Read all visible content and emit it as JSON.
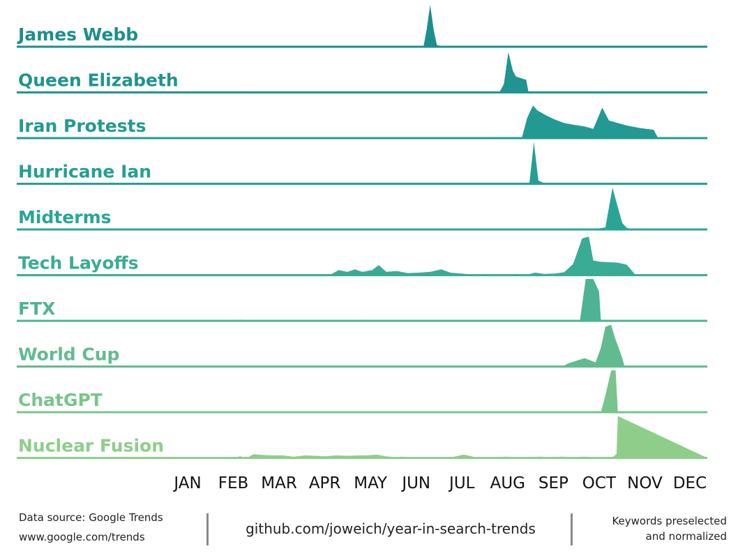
{
  "chart_data": {
    "type": "area",
    "subtype": "ridgeline",
    "months": [
      "JAN",
      "FEB",
      "MAR",
      "APR",
      "MAY",
      "JUN",
      "JUL",
      "AUG",
      "SEP",
      "OCT",
      "NOV",
      "DEC"
    ],
    "x_range": [
      0,
      12
    ],
    "y_range": [
      0,
      100
    ],
    "series": [
      {
        "name": "James Webb",
        "color": "#1b8e8e",
        "points": [
          [
            0,
            0
          ],
          [
            5.5,
            0
          ],
          [
            5.65,
            0
          ],
          [
            5.72,
            40
          ],
          [
            5.8,
            100
          ],
          [
            5.88,
            40
          ],
          [
            5.95,
            4
          ],
          [
            6.1,
            0
          ],
          [
            12,
            0
          ]
        ]
      },
      {
        "name": "Queen Elizabeth",
        "color": "#1f9490",
        "points": [
          [
            0,
            0
          ],
          [
            1.6,
            0
          ],
          [
            1.68,
            3
          ],
          [
            1.78,
            0
          ],
          [
            4.7,
            0
          ],
          [
            4.8,
            1
          ],
          [
            4.9,
            0
          ],
          [
            7.35,
            0
          ],
          [
            7.45,
            20
          ],
          [
            7.55,
            96
          ],
          [
            7.65,
            52
          ],
          [
            7.72,
            38
          ],
          [
            7.95,
            30
          ],
          [
            8.0,
            0
          ],
          [
            12,
            0
          ]
        ]
      },
      {
        "name": "Iran Protests",
        "color": "#229a93",
        "points": [
          [
            0,
            0
          ],
          [
            7.85,
            0
          ],
          [
            7.97,
            48
          ],
          [
            8.1,
            78
          ],
          [
            8.2,
            66
          ],
          [
            8.4,
            54
          ],
          [
            8.6,
            44
          ],
          [
            8.8,
            36
          ],
          [
            9.0,
            32
          ],
          [
            9.25,
            28
          ],
          [
            9.45,
            22
          ],
          [
            9.65,
            73
          ],
          [
            9.8,
            42
          ],
          [
            10.2,
            30
          ],
          [
            10.5,
            24
          ],
          [
            10.8,
            20
          ],
          [
            10.9,
            0
          ],
          [
            12,
            0
          ]
        ]
      },
      {
        "name": "Hurricane Ian",
        "color": "#259f94",
        "points": [
          [
            0,
            0
          ],
          [
            8.02,
            0
          ],
          [
            8.12,
            100
          ],
          [
            8.22,
            8
          ],
          [
            8.32,
            3
          ],
          [
            8.4,
            0
          ],
          [
            12,
            0
          ]
        ]
      },
      {
        "name": "Midterms",
        "color": "#2aa595",
        "points": [
          [
            0,
            0
          ],
          [
            9.4,
            0
          ],
          [
            9.6,
            3
          ],
          [
            9.72,
            5
          ],
          [
            9.8,
            52
          ],
          [
            9.88,
            100
          ],
          [
            9.98,
            60
          ],
          [
            10.1,
            15
          ],
          [
            10.2,
            4
          ],
          [
            10.3,
            0
          ],
          [
            12,
            0
          ]
        ]
      },
      {
        "name": "Tech Layoffs",
        "color": "#3aac96",
        "points": [
          [
            0,
            0
          ],
          [
            3.5,
            0
          ],
          [
            3.6,
            3
          ],
          [
            3.75,
            12
          ],
          [
            3.95,
            8
          ],
          [
            4.12,
            14
          ],
          [
            4.28,
            8
          ],
          [
            4.5,
            12
          ],
          [
            4.65,
            24
          ],
          [
            4.82,
            8
          ],
          [
            5.05,
            10
          ],
          [
            5.3,
            5
          ],
          [
            5.55,
            6
          ],
          [
            5.8,
            8
          ],
          [
            6.05,
            14
          ],
          [
            6.25,
            6
          ],
          [
            6.5,
            4
          ],
          [
            6.75,
            1
          ],
          [
            7.0,
            3
          ],
          [
            7.25,
            2
          ],
          [
            7.5,
            2
          ],
          [
            7.75,
            3
          ],
          [
            7.95,
            1
          ],
          [
            8.15,
            6
          ],
          [
            8.35,
            3
          ],
          [
            8.6,
            4
          ],
          [
            8.8,
            7
          ],
          [
            9.0,
            27
          ],
          [
            9.2,
            88
          ],
          [
            9.35,
            92
          ],
          [
            9.45,
            35
          ],
          [
            9.6,
            32
          ],
          [
            10.0,
            30
          ],
          [
            10.2,
            25
          ],
          [
            10.4,
            0
          ],
          [
            12,
            0
          ]
        ]
      },
      {
        "name": "FTX",
        "color": "#4db394",
        "points": [
          [
            0,
            0
          ],
          [
            1.3,
            0
          ],
          [
            1.55,
            3
          ],
          [
            1.85,
            0
          ],
          [
            4.15,
            0
          ],
          [
            4.3,
            3
          ],
          [
            4.45,
            0
          ],
          [
            9.15,
            0
          ],
          [
            9.28,
            100
          ],
          [
            9.45,
            100
          ],
          [
            9.58,
            70
          ],
          [
            9.62,
            0
          ],
          [
            9.75,
            0
          ],
          [
            9.83,
            0
          ],
          [
            9.93,
            0
          ],
          [
            12,
            0
          ]
        ]
      },
      {
        "name": "World Cup",
        "color": "#62bb90",
        "points": [
          [
            0,
            0
          ],
          [
            3.1,
            0
          ],
          [
            3.2,
            2
          ],
          [
            3.3,
            0
          ],
          [
            8.75,
            0
          ],
          [
            8.9,
            8
          ],
          [
            9.25,
            20
          ],
          [
            9.38,
            15
          ],
          [
            9.5,
            10
          ],
          [
            9.62,
            45
          ],
          [
            9.72,
            95
          ],
          [
            9.85,
            100
          ],
          [
            9.93,
            70
          ],
          [
            10.0,
            50
          ],
          [
            10.1,
            20
          ],
          [
            10.15,
            0
          ],
          [
            12,
            0
          ]
        ]
      },
      {
        "name": "ChatGPT",
        "color": "#78c48c",
        "points": [
          [
            0,
            0
          ],
          [
            9.62,
            0
          ],
          [
            9.72,
            40
          ],
          [
            9.85,
            100
          ],
          [
            9.95,
            100
          ],
          [
            10.0,
            0
          ],
          [
            12,
            0
          ]
        ]
      },
      {
        "name": "Nuclear Fusion",
        "color": "#8ece8a",
        "points": [
          [
            0,
            0
          ],
          [
            1.1,
            0
          ],
          [
            1.25,
            2
          ],
          [
            1.4,
            0
          ],
          [
            1.55,
            4
          ],
          [
            1.7,
            0
          ],
          [
            1.85,
            9
          ],
          [
            2.05,
            7
          ],
          [
            2.25,
            6
          ],
          [
            2.5,
            6
          ],
          [
            2.75,
            3
          ],
          [
            3.0,
            6
          ],
          [
            3.25,
            5
          ],
          [
            3.45,
            4
          ],
          [
            3.7,
            6
          ],
          [
            3.95,
            5
          ],
          [
            4.2,
            6
          ],
          [
            4.4,
            6
          ],
          [
            4.6,
            8
          ],
          [
            4.8,
            4
          ],
          [
            5.0,
            2
          ],
          [
            5.2,
            3
          ],
          [
            5.4,
            1
          ],
          [
            5.6,
            1
          ],
          [
            5.8,
            0
          ],
          [
            6.1,
            0
          ],
          [
            6.3,
            2
          ],
          [
            6.55,
            8
          ],
          [
            6.8,
            2
          ],
          [
            7.0,
            1
          ],
          [
            7.25,
            2
          ],
          [
            7.5,
            3
          ],
          [
            7.75,
            2
          ],
          [
            8.0,
            2
          ],
          [
            8.25,
            3
          ],
          [
            8.5,
            2
          ],
          [
            8.75,
            3
          ],
          [
            9.0,
            2
          ],
          [
            9.25,
            3
          ],
          [
            9.5,
            2
          ],
          [
            9.75,
            1
          ],
          [
            9.9,
            3
          ],
          [
            9.97,
            10
          ],
          [
            10.0,
            100
          ],
          [
            12,
            0
          ]
        ]
      }
    ]
  },
  "footer": {
    "source_line1": "Data source: Google Trends",
    "source_line2": "www.google.com/trends",
    "repo": "github.com/joweich/year-in-search-trends",
    "note_line1": "Keywords preselected",
    "note_line2": "and normalized"
  }
}
